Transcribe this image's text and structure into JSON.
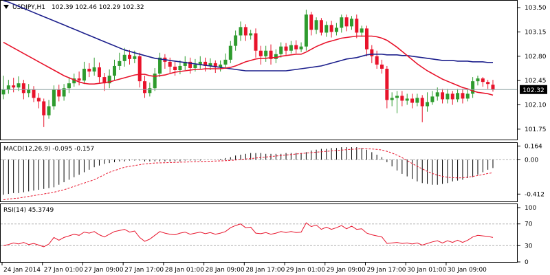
{
  "chart_data": [
    {
      "type": "candlestick",
      "title": "USDJPY,H1",
      "quote": "102.39 102.46 102.29 102.32",
      "last_price": "102.32",
      "ylim": [
        101.6,
        103.6
      ],
      "y_ticks": [
        "103.50",
        "103.15",
        "102.80",
        "102.45",
        "102.10",
        "101.75"
      ],
      "colors": {
        "bull": "#2e9b2e",
        "bear": "#e8132b",
        "ma_fast": "#e8132b",
        "ma_slow": "#1c1f8c",
        "last_line": "#8fa3a3"
      },
      "candles": [
        [
          102.25,
          102.32,
          102.52,
          102.18
        ],
        [
          102.32,
          102.38,
          102.46,
          102.26
        ],
        [
          102.38,
          102.35,
          102.49,
          102.28
        ],
        [
          102.35,
          102.41,
          102.51,
          102.3
        ],
        [
          102.41,
          102.27,
          102.46,
          102.18
        ],
        [
          102.27,
          102.32,
          102.4,
          102.21
        ],
        [
          102.32,
          102.2,
          102.37,
          102.14
        ],
        [
          102.2,
          102.15,
          102.27,
          102.05
        ],
        [
          102.15,
          101.95,
          102.19,
          101.78
        ],
        [
          101.95,
          102.08,
          102.17,
          101.9
        ],
        [
          102.08,
          102.32,
          102.38,
          102.03
        ],
        [
          102.32,
          102.22,
          102.39,
          102.15
        ],
        [
          102.22,
          102.34,
          102.4,
          102.16
        ],
        [
          102.34,
          102.41,
          102.5,
          102.27
        ],
        [
          102.41,
          102.48,
          102.55,
          102.36
        ],
        [
          102.48,
          102.45,
          102.58,
          102.38
        ],
        [
          102.45,
          102.62,
          102.72,
          102.4
        ],
        [
          102.62,
          102.58,
          102.7,
          102.5
        ],
        [
          102.58,
          102.64,
          102.78,
          102.52
        ],
        [
          102.64,
          102.5,
          102.71,
          102.42
        ],
        [
          102.5,
          102.41,
          102.56,
          102.3
        ],
        [
          102.41,
          102.52,
          102.61,
          102.34
        ],
        [
          102.52,
          102.66,
          102.75,
          102.46
        ],
        [
          102.66,
          102.73,
          102.85,
          102.6
        ],
        [
          102.73,
          102.82,
          102.92,
          102.65
        ],
        [
          102.82,
          102.76,
          102.89,
          102.68
        ],
        [
          102.76,
          102.8,
          102.88,
          102.7
        ],
        [
          102.8,
          102.44,
          102.85,
          102.35
        ],
        [
          102.44,
          102.27,
          102.52,
          102.2
        ],
        [
          102.27,
          102.34,
          102.42,
          102.22
        ],
        [
          102.34,
          102.55,
          102.63,
          102.3
        ],
        [
          102.55,
          102.78,
          102.85,
          102.5
        ],
        [
          102.78,
          102.72,
          102.83,
          102.62
        ],
        [
          102.72,
          102.65,
          102.78,
          102.56
        ],
        [
          102.65,
          102.6,
          102.73,
          102.52
        ],
        [
          102.6,
          102.66,
          102.74,
          102.54
        ],
        [
          102.66,
          102.72,
          102.8,
          102.6
        ],
        [
          102.72,
          102.63,
          102.78,
          102.55
        ],
        [
          102.63,
          102.68,
          102.76,
          102.58
        ],
        [
          102.68,
          102.72,
          102.8,
          102.62
        ],
        [
          102.72,
          102.66,
          102.78,
          102.58
        ],
        [
          102.66,
          102.7,
          102.77,
          102.6
        ],
        [
          102.7,
          102.64,
          102.74,
          102.56
        ],
        [
          102.64,
          102.68,
          102.74,
          102.58
        ],
        [
          102.68,
          102.75,
          102.84,
          102.62
        ],
        [
          102.75,
          102.95,
          103.02,
          102.7
        ],
        [
          102.95,
          103.1,
          103.17,
          102.88
        ],
        [
          103.1,
          103.22,
          103.3,
          103.02
        ],
        [
          103.22,
          103.1,
          103.26,
          103.02
        ],
        [
          103.1,
          103.13,
          103.18,
          103.04
        ],
        [
          103.13,
          102.88,
          103.2,
          102.78
        ],
        [
          102.88,
          102.8,
          102.95,
          102.68
        ],
        [
          102.8,
          102.88,
          102.95,
          102.72
        ],
        [
          102.88,
          102.76,
          102.97,
          102.68
        ],
        [
          102.76,
          102.83,
          102.9,
          102.7
        ],
        [
          102.83,
          102.94,
          103.0,
          102.78
        ],
        [
          102.94,
          102.88,
          102.99,
          102.82
        ],
        [
          102.88,
          102.96,
          103.02,
          102.84
        ],
        [
          102.96,
          102.9,
          103.03,
          102.84
        ],
        [
          102.9,
          102.94,
          103.0,
          102.86
        ],
        [
          102.94,
          103.4,
          103.47,
          102.88
        ],
        [
          103.4,
          103.18,
          103.44,
          103.1
        ],
        [
          103.18,
          103.32,
          103.36,
          103.12
        ],
        [
          103.32,
          103.14,
          103.35,
          103.1
        ],
        [
          103.14,
          103.25,
          103.3,
          103.08
        ],
        [
          103.25,
          103.15,
          103.31,
          103.07
        ],
        [
          103.15,
          103.21,
          103.28,
          103.1
        ],
        [
          103.21,
          103.36,
          103.4,
          103.14
        ],
        [
          103.36,
          103.23,
          103.4,
          103.16
        ],
        [
          103.23,
          103.34,
          103.38,
          103.18
        ],
        [
          103.34,
          103.14,
          103.4,
          103.06
        ],
        [
          103.14,
          103.2,
          103.24,
          103.08
        ],
        [
          103.2,
          102.9,
          103.24,
          102.8
        ],
        [
          102.9,
          102.8,
          102.96,
          102.7
        ],
        [
          102.8,
          102.68,
          102.88,
          102.62
        ],
        [
          102.68,
          102.62,
          102.75,
          102.55
        ],
        [
          102.62,
          102.17,
          102.66,
          102.05
        ],
        [
          102.17,
          102.2,
          102.28,
          102.08
        ],
        [
          102.2,
          102.23,
          102.3,
          101.98
        ],
        [
          102.23,
          102.16,
          102.3,
          102.08
        ],
        [
          102.16,
          102.19,
          102.26,
          102.1
        ],
        [
          102.19,
          102.13,
          102.26,
          102.05
        ],
        [
          102.13,
          102.2,
          102.26,
          102.08
        ],
        [
          102.2,
          102.08,
          102.24,
          101.85
        ],
        [
          102.08,
          102.14,
          102.28,
          102.0
        ],
        [
          102.14,
          102.22,
          102.3,
          102.1
        ],
        [
          102.22,
          102.28,
          102.35,
          102.16
        ],
        [
          102.28,
          102.18,
          102.33,
          102.12
        ],
        [
          102.18,
          102.26,
          102.33,
          102.12
        ],
        [
          102.26,
          102.18,
          102.3,
          102.1
        ],
        [
          102.18,
          102.27,
          102.33,
          102.14
        ],
        [
          102.27,
          102.19,
          102.33,
          102.12
        ],
        [
          102.19,
          102.26,
          102.33,
          102.15
        ],
        [
          102.26,
          102.44,
          102.5,
          102.2
        ],
        [
          102.44,
          102.48,
          102.52,
          102.38
        ],
        [
          102.48,
          102.43,
          102.5,
          102.36
        ],
        [
          102.43,
          102.4,
          102.46,
          102.33
        ],
        [
          102.39,
          102.32,
          102.46,
          102.29
        ]
      ],
      "ma_fast": [
        103.0,
        102.96,
        102.92,
        102.88,
        102.84,
        102.8,
        102.76,
        102.72,
        102.68,
        102.64,
        102.6,
        102.56,
        102.52,
        102.49,
        102.46,
        102.43,
        102.41,
        102.4,
        102.4,
        102.41,
        102.42,
        102.43,
        102.45,
        102.47,
        102.49,
        102.51,
        102.53,
        102.54,
        102.54,
        102.52,
        102.51,
        102.52,
        102.53,
        102.55,
        102.57,
        102.58,
        102.59,
        102.6,
        102.61,
        102.61,
        102.62,
        102.62,
        102.62,
        102.62,
        102.63,
        102.64,
        102.66,
        102.69,
        102.72,
        102.74,
        102.76,
        102.77,
        102.77,
        102.78,
        102.78,
        102.8,
        102.81,
        102.82,
        102.83,
        102.83,
        102.86,
        102.9,
        102.94,
        102.97,
        103.0,
        103.02,
        103.04,
        103.06,
        103.07,
        103.08,
        103.09,
        103.09,
        103.09,
        103.09,
        103.08,
        103.06,
        103.03,
        102.98,
        102.93,
        102.87,
        102.81,
        102.75,
        102.69,
        102.64,
        102.59,
        102.55,
        102.51,
        102.47,
        102.44,
        102.41,
        102.38,
        102.35,
        102.33,
        102.3,
        102.28,
        102.27,
        102.26,
        102.24
      ],
      "ma_slow": [
        103.6,
        103.58,
        103.55,
        103.52,
        103.49,
        103.46,
        103.43,
        103.4,
        103.37,
        103.34,
        103.31,
        103.28,
        103.25,
        103.22,
        103.19,
        103.16,
        103.13,
        103.1,
        103.07,
        103.04,
        103.01,
        102.98,
        102.95,
        102.92,
        102.89,
        102.87,
        102.85,
        102.83,
        102.81,
        102.79,
        102.77,
        102.76,
        102.75,
        102.74,
        102.73,
        102.72,
        102.71,
        102.7,
        102.69,
        102.68,
        102.67,
        102.66,
        102.65,
        102.64,
        102.63,
        102.62,
        102.61,
        102.6,
        102.59,
        102.59,
        102.59,
        102.59,
        102.59,
        102.59,
        102.59,
        102.59,
        102.59,
        102.6,
        102.61,
        102.62,
        102.63,
        102.64,
        102.65,
        102.66,
        102.68,
        102.7,
        102.72,
        102.74,
        102.76,
        102.77,
        102.78,
        102.8,
        102.82,
        102.83,
        102.83,
        102.83,
        102.82,
        102.82,
        102.82,
        102.81,
        102.81,
        102.8,
        102.79,
        102.78,
        102.77,
        102.76,
        102.75,
        102.74,
        102.74,
        102.74,
        102.73,
        102.73,
        102.73,
        102.72,
        102.72,
        102.72,
        102.71,
        102.71
      ]
    },
    {
      "type": "macd",
      "title": "MACD(12,26,9) -0.095 -0.157",
      "ylim": [
        -0.5,
        0.2
      ],
      "y_ticks": [
        "0.164",
        "0.00",
        "-0.412"
      ],
      "zero_label": "0.00",
      "colors": {
        "hist": "#000000",
        "signal": "#e8132b",
        "zero": "#b0b0b0"
      },
      "hist": [
        -0.42,
        -0.41,
        -0.4,
        -0.4,
        -0.39,
        -0.38,
        -0.37,
        -0.36,
        -0.35,
        -0.34,
        -0.33,
        -0.3,
        -0.27,
        -0.24,
        -0.21,
        -0.18,
        -0.15,
        -0.12,
        -0.09,
        -0.07,
        -0.05,
        -0.04,
        -0.03,
        -0.02,
        -0.02,
        -0.01,
        -0.01,
        -0.01,
        -0.02,
        -0.02,
        -0.02,
        -0.02,
        -0.02,
        -0.02,
        -0.02,
        -0.02,
        -0.01,
        -0.01,
        -0.01,
        -0.01,
        0.0,
        0.0,
        0.0,
        0.01,
        0.02,
        0.03,
        0.05,
        0.06,
        0.07,
        0.08,
        0.08,
        0.08,
        0.07,
        0.07,
        0.07,
        0.07,
        0.08,
        0.08,
        0.08,
        0.08,
        0.09,
        0.11,
        0.12,
        0.13,
        0.13,
        0.14,
        0.14,
        0.15,
        0.15,
        0.15,
        0.15,
        0.14,
        0.12,
        0.09,
        0.06,
        0.03,
        -0.03,
        -0.08,
        -0.13,
        -0.17,
        -0.2,
        -0.23,
        -0.26,
        -0.28,
        -0.29,
        -0.3,
        -0.3,
        -0.29,
        -0.28,
        -0.26,
        -0.25,
        -0.24,
        -0.22,
        -0.21,
        -0.18,
        -0.15,
        -0.12,
        -0.1
      ],
      "signal": [
        -0.48,
        -0.47,
        -0.465,
        -0.46,
        -0.45,
        -0.44,
        -0.43,
        -0.42,
        -0.41,
        -0.4,
        -0.39,
        -0.375,
        -0.36,
        -0.34,
        -0.32,
        -0.3,
        -0.28,
        -0.26,
        -0.24,
        -0.21,
        -0.18,
        -0.15,
        -0.13,
        -0.11,
        -0.09,
        -0.08,
        -0.07,
        -0.06,
        -0.05,
        -0.045,
        -0.04,
        -0.038,
        -0.036,
        -0.034,
        -0.032,
        -0.03,
        -0.028,
        -0.026,
        -0.024,
        -0.022,
        -0.02,
        -0.018,
        -0.016,
        -0.014,
        -0.012,
        -0.008,
        -0.004,
        0.002,
        0.008,
        0.014,
        0.02,
        0.026,
        0.032,
        0.038,
        0.044,
        0.05,
        0.056,
        0.062,
        0.068,
        0.074,
        0.08,
        0.085,
        0.09,
        0.095,
        0.1,
        0.105,
        0.11,
        0.115,
        0.12,
        0.125,
        0.128,
        0.13,
        0.13,
        0.128,
        0.124,
        0.116,
        0.1,
        0.08,
        0.055,
        0.025,
        -0.01,
        -0.045,
        -0.08,
        -0.11,
        -0.14,
        -0.165,
        -0.185,
        -0.2,
        -0.21,
        -0.215,
        -0.218,
        -0.216,
        -0.21,
        -0.2,
        -0.19,
        -0.178,
        -0.165,
        -0.157
      ]
    },
    {
      "type": "rsi",
      "title": "RSI(14) 45.3749",
      "ylim": [
        0,
        100
      ],
      "y_ticks": [
        "100",
        "70",
        "30",
        "0"
      ],
      "levels": [
        70,
        30
      ],
      "colors": {
        "line": "#e8132b",
        "levels": "#b0b0b0"
      },
      "values": [
        30,
        32,
        35,
        33,
        36,
        32,
        34,
        31,
        28,
        33,
        45,
        40,
        45,
        48,
        51,
        49,
        55,
        53,
        56,
        50,
        46,
        51,
        56,
        58,
        60,
        55,
        57,
        45,
        38,
        42,
        49,
        56,
        53,
        51,
        50,
        53,
        55,
        51,
        53,
        55,
        52,
        54,
        51,
        53,
        56,
        63,
        67,
        70,
        63,
        64,
        53,
        52,
        54,
        51,
        53,
        56,
        54,
        56,
        54,
        55,
        72,
        65,
        68,
        60,
        64,
        60,
        63,
        67,
        61,
        66,
        60,
        61,
        53,
        50,
        48,
        46,
        34,
        35,
        36,
        34,
        35,
        33,
        35,
        31,
        34,
        37,
        39,
        35,
        39,
        36,
        40,
        36,
        40,
        46,
        49,
        48,
        47,
        45
      ]
    }
  ],
  "x_axis": {
    "labels": [
      "24 Jan 2014",
      "27 Jan 01:00",
      "27 Jan 09:00",
      "27 Jan 17:00",
      "28 Jan 01:00",
      "28 Jan 09:00",
      "28 Jan 17:00",
      "29 Jan 01:00",
      "29 Jan 09:00",
      "29 Jan 17:00",
      "30 Jan 01:00",
      "30 Jan 09:00"
    ],
    "label_bars": [
      0,
      8,
      16,
      24,
      32,
      40,
      48,
      56,
      64,
      72,
      80,
      88
    ]
  }
}
